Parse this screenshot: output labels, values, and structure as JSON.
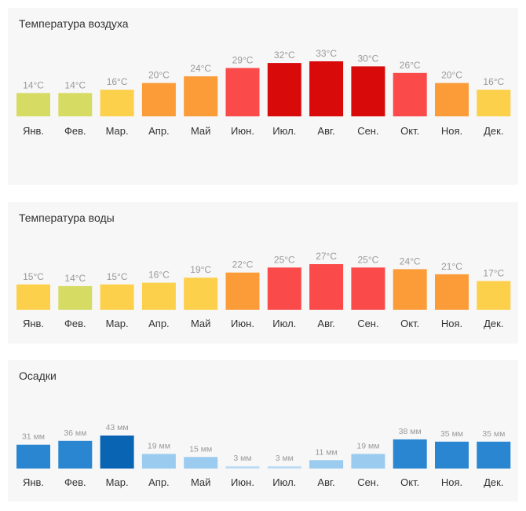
{
  "chart_data": [
    {
      "id": "air",
      "type": "bar",
      "title": "Температура воздуха",
      "categories": [
        "Янв.",
        "Фев.",
        "Мар.",
        "Апр.",
        "Май",
        "Июн.",
        "Июл.",
        "Авг.",
        "Сен.",
        "Окт.",
        "Ноя.",
        "Дек."
      ],
      "values": [
        14,
        14,
        16,
        20,
        24,
        29,
        32,
        33,
        30,
        26,
        20,
        16
      ],
      "labels": [
        "14°C",
        "14°C",
        "16°C",
        "20°C",
        "24°C",
        "29°C",
        "32°C",
        "33°C",
        "30°C",
        "26°C",
        "20°C",
        "16°C"
      ],
      "colors": [
        "#d6dc63",
        "#d6dc63",
        "#fcd04b",
        "#fb9c39",
        "#fb9c39",
        "#fa4a4a",
        "#d90a0a",
        "#d90a0a",
        "#d90a0a",
        "#fa4a4a",
        "#fb9c39",
        "#fcd04b"
      ],
      "unit": "°C",
      "ylim": [
        0,
        33
      ]
    },
    {
      "id": "water",
      "type": "bar",
      "title": "Температура воды",
      "categories": [
        "Янв.",
        "Фев.",
        "Мар.",
        "Апр.",
        "Май",
        "Июн.",
        "Июл.",
        "Авг.",
        "Сен.",
        "Окт.",
        "Ноя.",
        "Дек."
      ],
      "values": [
        15,
        14,
        15,
        16,
        19,
        22,
        25,
        27,
        25,
        24,
        21,
        17
      ],
      "labels": [
        "15°C",
        "14°C",
        "15°C",
        "16°C",
        "19°C",
        "22°C",
        "25°C",
        "27°C",
        "25°C",
        "24°C",
        "21°C",
        "17°C"
      ],
      "colors": [
        "#fcd04b",
        "#d6dc63",
        "#fcd04b",
        "#fcd04b",
        "#fcd04b",
        "#fb9c39",
        "#fa4a4a",
        "#fa4a4a",
        "#fa4a4a",
        "#fb9c39",
        "#fb9c39",
        "#fcd04b"
      ],
      "unit": "°C",
      "ylim": [
        0,
        27
      ]
    },
    {
      "id": "rain",
      "type": "bar",
      "title": "Осадки",
      "categories": [
        "Янв.",
        "Фев.",
        "Мар.",
        "Апр.",
        "Май",
        "Июн.",
        "Июл.",
        "Авг.",
        "Сен.",
        "Окт.",
        "Ноя.",
        "Дек."
      ],
      "values": [
        31,
        36,
        43,
        19,
        15,
        3,
        3,
        11,
        19,
        38,
        35,
        35
      ],
      "labels": [
        "31 мм",
        "36 мм",
        "43 мм",
        "19 мм",
        "15 мм",
        "3 мм",
        "3 мм",
        "11 мм",
        "19 мм",
        "38 мм",
        "35 мм",
        "35 мм"
      ],
      "colors": [
        "#2a86d0",
        "#2a86d0",
        "#0a64b4",
        "#9ccbf0",
        "#9ccbf0",
        "#bcdcf5",
        "#bcdcf5",
        "#9ccbf0",
        "#9ccbf0",
        "#2a86d0",
        "#2a86d0",
        "#2a86d0"
      ],
      "unit": "мм",
      "ylim": [
        0,
        43
      ]
    }
  ]
}
